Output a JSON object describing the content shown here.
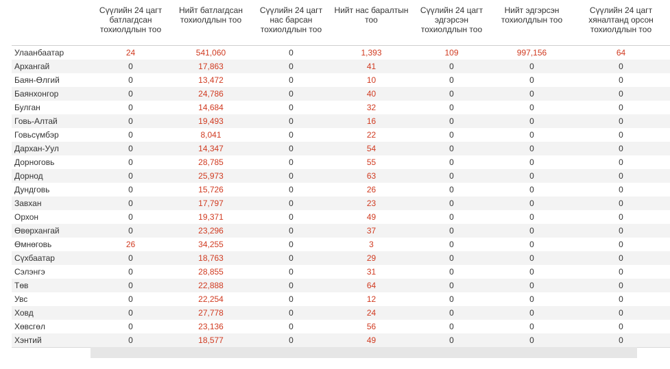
{
  "table": {
    "headers": [
      "",
      "Сүүлийн 24 цагт батлагдсан тохиолдлын тоо",
      "Нийт батлагдсан тохиолдлын тоо",
      "Сүүлийн 24 цагт нас барсан тохиолдлын тоо",
      "Нийт нас баралтын тоо",
      "Сүүлийн 24 цагт эдгэрсэн тохиолдлын тоо",
      "Нийт эдгэрсэн тохиолдлын тоо",
      "Сүүлийн 24 цагт хяналтанд орсон тохиолдлын тоо"
    ],
    "rows": [
      [
        "Улаанбаатар",
        "24",
        "541,060",
        "0",
        "1,393",
        "109",
        "997,156",
        "64"
      ],
      [
        "Архангай",
        "0",
        "17,863",
        "0",
        "41",
        "0",
        "0",
        "0"
      ],
      [
        "Баян-Өлгий",
        "0",
        "13,472",
        "0",
        "10",
        "0",
        "0",
        "0"
      ],
      [
        "Баянхонгор",
        "0",
        "24,786",
        "0",
        "40",
        "0",
        "0",
        "0"
      ],
      [
        "Булган",
        "0",
        "14,684",
        "0",
        "32",
        "0",
        "0",
        "0"
      ],
      [
        "Говь-Алтай",
        "0",
        "19,493",
        "0",
        "16",
        "0",
        "0",
        "0"
      ],
      [
        "Говьсүмбэр",
        "0",
        "8,041",
        "0",
        "22",
        "0",
        "0",
        "0"
      ],
      [
        "Дархан-Уул",
        "0",
        "14,347",
        "0",
        "54",
        "0",
        "0",
        "0"
      ],
      [
        "Дорноговь",
        "0",
        "28,785",
        "0",
        "55",
        "0",
        "0",
        "0"
      ],
      [
        "Дорнод",
        "0",
        "25,973",
        "0",
        "63",
        "0",
        "0",
        "0"
      ],
      [
        "Дундговь",
        "0",
        "15,726",
        "0",
        "26",
        "0",
        "0",
        "0"
      ],
      [
        "Завхан",
        "0",
        "17,797",
        "0",
        "23",
        "0",
        "0",
        "0"
      ],
      [
        "Орхон",
        "0",
        "19,371",
        "0",
        "49",
        "0",
        "0",
        "0"
      ],
      [
        "Өвөрхангай",
        "0",
        "23,296",
        "0",
        "37",
        "0",
        "0",
        "0"
      ],
      [
        "Өмнөговь",
        "26",
        "34,255",
        "0",
        "3",
        "0",
        "0",
        "0"
      ],
      [
        "Сүхбаатар",
        "0",
        "18,763",
        "0",
        "29",
        "0",
        "0",
        "0"
      ],
      [
        "Сэлэнгэ",
        "0",
        "28,855",
        "0",
        "31",
        "0",
        "0",
        "0"
      ],
      [
        "Төв",
        "0",
        "22,888",
        "0",
        "64",
        "0",
        "0",
        "0"
      ],
      [
        "Увс",
        "0",
        "22,254",
        "0",
        "12",
        "0",
        "0",
        "0"
      ],
      [
        "Ховд",
        "0",
        "27,778",
        "0",
        "24",
        "0",
        "0",
        "0"
      ],
      [
        "Хөвсгөл",
        "0",
        "23,136",
        "0",
        "56",
        "0",
        "0",
        "0"
      ],
      [
        "Хэнтий",
        "0",
        "18,577",
        "0",
        "49",
        "0",
        "0",
        "0"
      ]
    ]
  },
  "colors": {
    "nonzero": "#d03a20",
    "zero": "#333333",
    "stripe": "#f3f3f3",
    "scrollbar": "#e6e6e6"
  }
}
